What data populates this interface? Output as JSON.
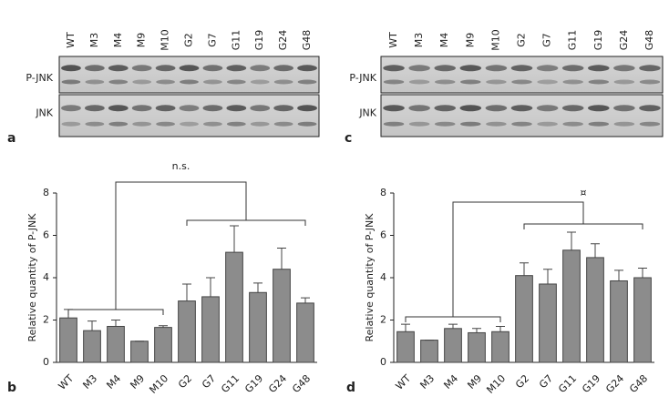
{
  "blots": [
    {
      "panel": "a",
      "lanes": [
        "WT",
        "M3",
        "M4",
        "M9",
        "M10",
        "G2",
        "G7",
        "G11",
        "G19",
        "G24",
        "G48"
      ],
      "rows": [
        "P-JNK",
        "JNK"
      ]
    },
    {
      "panel": "c",
      "lanes": [
        "WT",
        "M3",
        "M4",
        "M9",
        "M10",
        "G2",
        "G7",
        "G11",
        "G19",
        "G24",
        "G48"
      ],
      "rows": [
        "P-JNK",
        "JNK"
      ]
    }
  ],
  "chart_data": [
    {
      "type": "bar",
      "panel": "b",
      "ylabel": "Relative quantity of P-JNK",
      "annotation": "n.s.",
      "categories": [
        "WT",
        "M3",
        "M4",
        "M9",
        "M10",
        "G2",
        "G7",
        "G11",
        "G19",
        "G24",
        "G48"
      ],
      "values": [
        2.1,
        1.5,
        1.7,
        1.0,
        1.65,
        2.9,
        3.1,
        5.2,
        3.3,
        4.4,
        2.8
      ],
      "errors": [
        0.4,
        0.45,
        0.3,
        0,
        0.08,
        0.8,
        0.9,
        1.25,
        0.45,
        1.0,
        0.25
      ],
      "color": "#8c8c8c",
      "ylim": [
        0,
        8
      ],
      "yticks": [
        0,
        2,
        4,
        6,
        8
      ]
    },
    {
      "type": "bar",
      "panel": "d",
      "ylabel": "Relative quantity of P-JNK",
      "annotation": "¤",
      "categories": [
        "WT",
        "M3",
        "M4",
        "M9",
        "M10",
        "G2",
        "G7",
        "G11",
        "G19",
        "G24",
        "G48"
      ],
      "values": [
        1.45,
        1.05,
        1.6,
        1.4,
        1.45,
        4.1,
        3.7,
        5.3,
        4.95,
        3.85,
        4.0
      ],
      "errors": [
        0.35,
        0,
        0.2,
        0.2,
        0.25,
        0.6,
        0.7,
        0.85,
        0.65,
        0.5,
        0.45
      ],
      "color": "#8c8c8c",
      "ylim": [
        0,
        8
      ],
      "yticks": [
        0,
        2,
        4,
        6,
        8
      ]
    }
  ]
}
